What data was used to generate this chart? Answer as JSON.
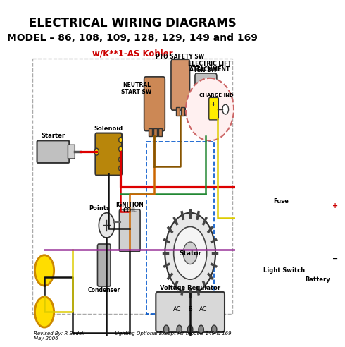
{
  "title_line1": "ELECTRICAL WIRING DIAGRAMS",
  "title_line2": "MODEL – 86, 108, 109, 128, 129, 149 and 169",
  "title_line3": "w/K**1-AS Kohler",
  "footer_left": "Revised By: R Bedell\nMay 2006",
  "footer_right": "Lighting Optional Except for models 149 & 169",
  "bg_color": "#ffffff",
  "title_color": "#000000",
  "subtitle_color": "#cc0000",
  "wire_red": "#dd0000",
  "wire_black": "#111111",
  "wire_yellow": "#ddcc00",
  "wire_green": "#228833",
  "wire_orange": "#cc6600",
  "wire_purple": "#993399",
  "wire_brown": "#885500",
  "wire_blue": "#0000cc"
}
